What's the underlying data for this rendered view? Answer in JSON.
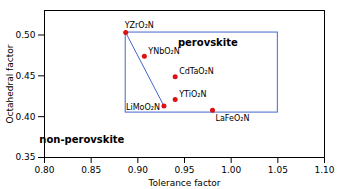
{
  "chart_data": {
    "type": "scatter",
    "points": [
      {
        "label": "YZrO₂N",
        "x": 0.887,
        "y": 0.503
      },
      {
        "label": "YNbO₂N",
        "x": 0.907,
        "y": 0.474
      },
      {
        "label": "CdTaO₂N",
        "x": 0.94,
        "y": 0.449
      },
      {
        "label": "YTiO₂N",
        "x": 0.94,
        "y": 0.421
      },
      {
        "label": "LiMoO₂N",
        "x": 0.928,
        "y": 0.413
      },
      {
        "label": "LaFeO₂N",
        "x": 0.98,
        "y": 0.408
      }
    ],
    "color": "#dd1111",
    "line": {
      "x": [
        0.887,
        0.928
      ],
      "y": [
        0.503,
        0.413
      ],
      "color": "#4466cc"
    },
    "region": {
      "x": [
        0.887,
        1.05
      ],
      "y": [
        0.405,
        0.503
      ],
      "color": "#4466cc"
    },
    "annotations": [
      {
        "text": "perovskite",
        "x": 0.975,
        "y": 0.49
      },
      {
        "text": "non-perovskite",
        "x": 0.84,
        "y": 0.372
      }
    ],
    "xlabel": "Tolerance factor",
    "ylabel": "Octahedral factor",
    "xlim": [
      0.8,
      1.1
    ],
    "ylim": [
      0.35,
      0.53
    ],
    "xticks": [
      {
        "value": 0.8,
        "label": "0.80"
      },
      0.85,
      {
        "value": 0.9,
        "label": "0.90"
      },
      0.95,
      {
        "value": 1.0,
        "label": "1.00"
      },
      1.05,
      {
        "value": 1.1,
        "label": "1.10"
      }
    ],
    "yticks": [
      0.35,
      {
        "value": 0.4,
        "label": "0.40"
      },
      0.45,
      {
        "value": 0.5,
        "label": "0.50"
      }
    ]
  }
}
